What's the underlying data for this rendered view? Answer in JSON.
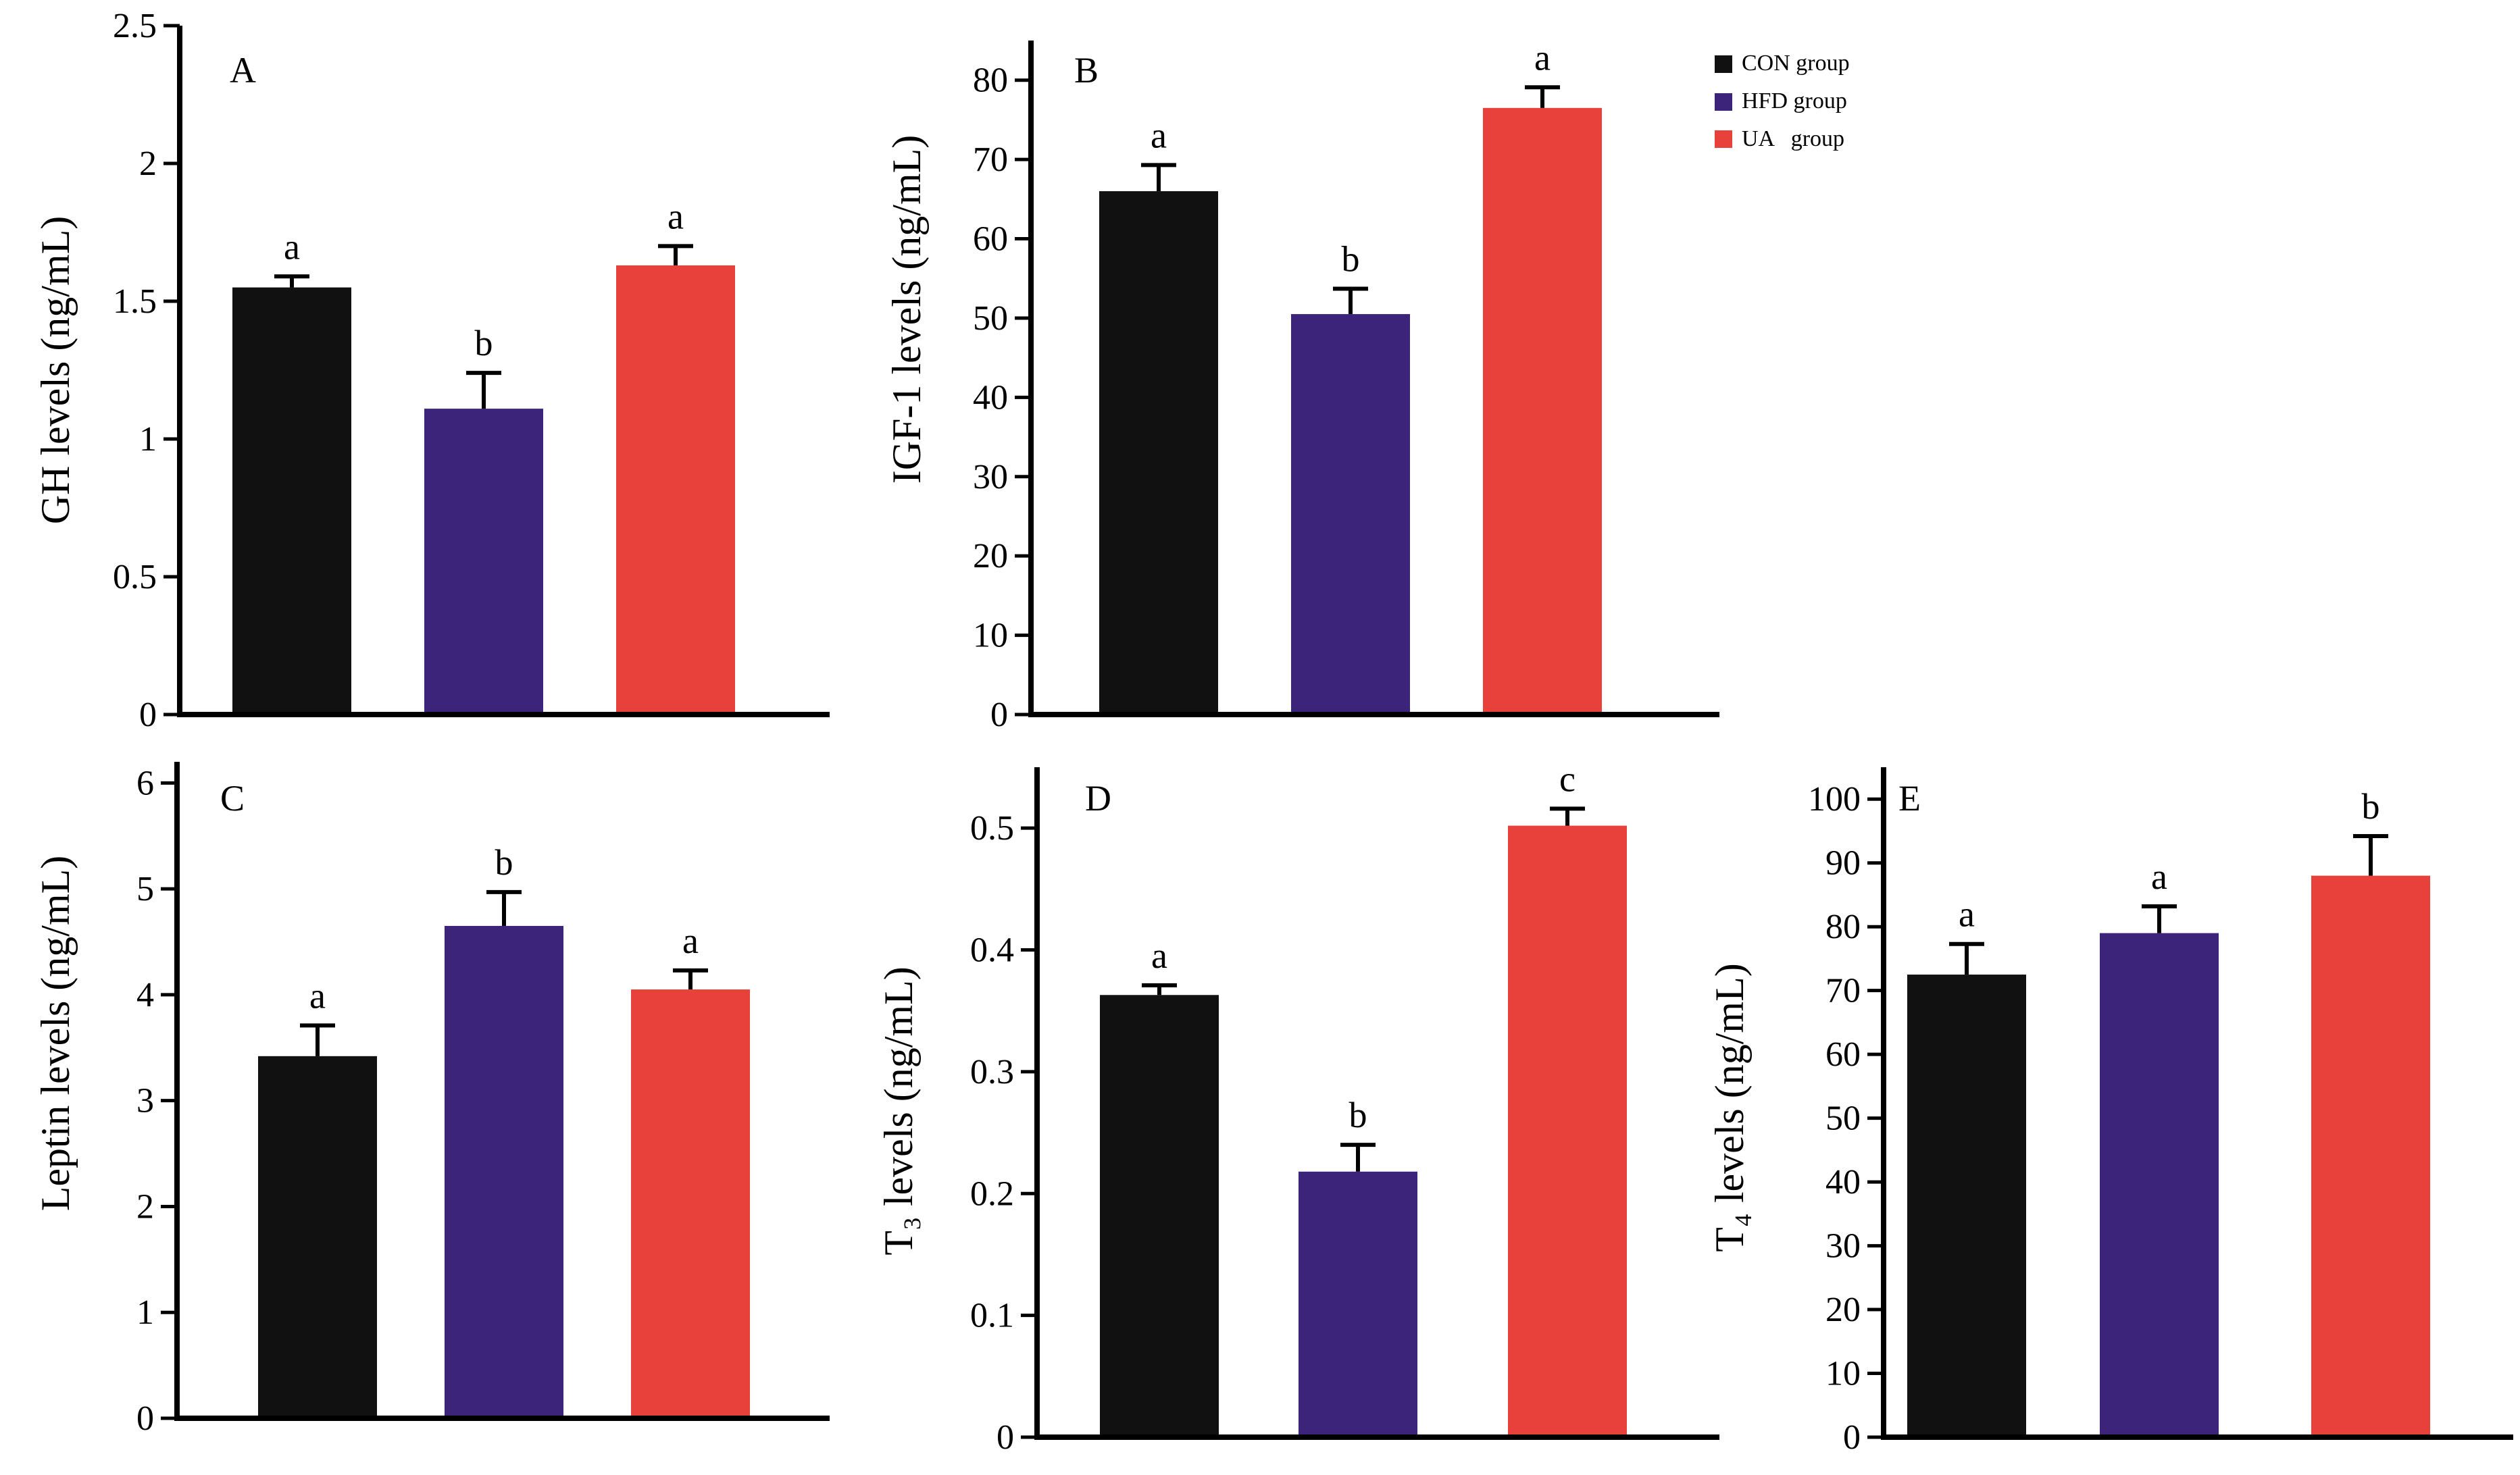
{
  "legend": {
    "items": [
      {
        "label": "CON group",
        "color": "#111111"
      },
      {
        "label": "HFD group",
        "color": "#3B2479"
      },
      {
        "label": "UA   group",
        "color": "#E8403A"
      }
    ]
  },
  "chart_data": [
    {
      "type": "bar",
      "panel": "A",
      "ylabel": "GH levels (ng/mL)",
      "ylim": [
        0,
        2.5
      ],
      "yticks": [
        0,
        0.5,
        1,
        1.5,
        2,
        2.5
      ],
      "ytick_labels": [
        "0",
        "0.5",
        "1",
        "1.5",
        "2",
        "2.5"
      ],
      "categories": [
        "CON group",
        "HFD group",
        "UA   group"
      ],
      "values": [
        1.55,
        1.11,
        1.63
      ],
      "errors": [
        0.04,
        0.13,
        0.07
      ],
      "letters": [
        "a",
        "b",
        "a"
      ]
    },
    {
      "type": "bar",
      "panel": "B",
      "ylabel": "IGF-1 levels (ng/mL)",
      "ylim": [
        0,
        85
      ],
      "yticks": [
        0,
        10,
        20,
        30,
        40,
        50,
        60,
        70,
        80
      ],
      "ytick_labels": [
        "0",
        "10",
        "20",
        "30",
        "40",
        "50",
        "60",
        "70",
        "80"
      ],
      "categories": [
        "CON group",
        "HFD group",
        "UA   group"
      ],
      "values": [
        66,
        50.5,
        76.5
      ],
      "errors": [
        3.3,
        3.2,
        2.6
      ],
      "letters": [
        "a",
        "b",
        "a"
      ]
    },
    {
      "type": "bar",
      "panel": "C",
      "ylabel": "Leptin levels (ng/mL)",
      "ylim": [
        0,
        6.2
      ],
      "yticks": [
        0,
        1,
        2,
        3,
        4,
        5,
        6
      ],
      "ytick_labels": [
        "0",
        "1",
        "2",
        "3",
        "4",
        "5",
        "6"
      ],
      "categories": [
        "CON group",
        "HFD group",
        "UA   group"
      ],
      "values": [
        3.42,
        4.65,
        4.05
      ],
      "errors": [
        0.29,
        0.32,
        0.18
      ],
      "letters": [
        "a",
        "b",
        "a"
      ]
    },
    {
      "type": "bar",
      "panel": "D",
      "ylabel": "T₃ levels (ng/mL)",
      "ylim": [
        0,
        0.55
      ],
      "yticks": [
        0,
        0.1,
        0.2,
        0.3,
        0.4,
        0.5
      ],
      "ytick_labels": [
        "0",
        "0.1",
        "0.2",
        "0.3",
        "0.4",
        "0.5"
      ],
      "categories": [
        "CON group",
        "HFD group",
        "UA   group"
      ],
      "values": [
        0.363,
        0.218,
        0.502
      ],
      "errors": [
        0.008,
        0.022,
        0.014
      ],
      "letters": [
        "a",
        "b",
        "c"
      ]
    },
    {
      "type": "bar",
      "panel": "E",
      "ylabel": "T₄ levels (ng/mL)",
      "ylim": [
        0,
        105
      ],
      "yticks": [
        0,
        10,
        20,
        30,
        40,
        50,
        60,
        70,
        80,
        90,
        100
      ],
      "ytick_labels": [
        "0",
        "10",
        "20",
        "30",
        "40",
        "50",
        "60",
        "70",
        "80",
        "90",
        "100"
      ],
      "categories": [
        "CON group",
        "HFD group",
        "UA   group"
      ],
      "values": [
        72.5,
        79,
        88
      ],
      "errors": [
        4.8,
        4.2,
        6.2
      ],
      "letters": [
        "a",
        "a",
        "b"
      ]
    }
  ]
}
